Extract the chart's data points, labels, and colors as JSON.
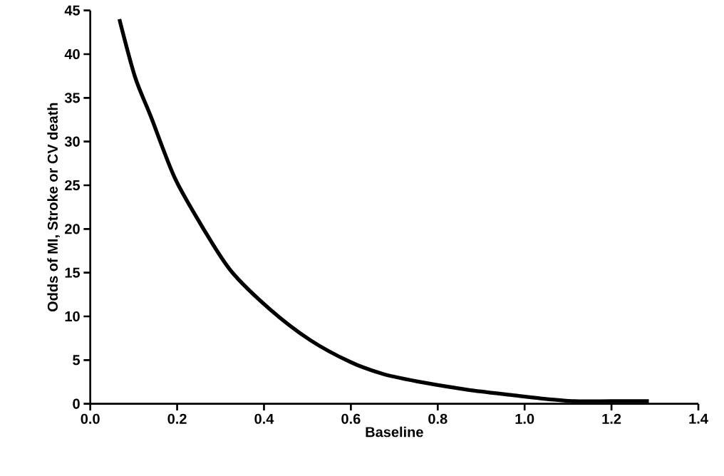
{
  "chart_data": {
    "type": "line",
    "xlabel": "Baseline",
    "ylabel": "Odds of MI, Stroke or CV death",
    "x": [
      0.067,
      0.103,
      0.14,
      0.195,
      0.262,
      0.324,
      0.414,
      0.506,
      0.598,
      0.675,
      0.77,
      0.87,
      0.97,
      1.04,
      1.114,
      1.2,
      1.286
    ],
    "series": [
      {
        "color": "#000000",
        "values": [
          44.0,
          37.4,
          32.8,
          25.8,
          19.9,
          15.2,
          10.8,
          7.3,
          4.8,
          3.4,
          2.4,
          1.6,
          1.0,
          0.6,
          0.3,
          0.3,
          0.3
        ]
      }
    ],
    "xlim": [
      0,
      1.4
    ],
    "ylim": [
      0,
      45
    ],
    "xticks": [
      {
        "value": 0,
        "label": "0.0"
      },
      {
        "value": 0.2,
        "label": "0.2"
      },
      {
        "value": 0.4,
        "label": "0.4"
      },
      {
        "value": 0.6,
        "label": "0.6"
      },
      {
        "value": 0.8,
        "label": "0.8"
      },
      {
        "value": 1.0,
        "label": "1.0"
      },
      {
        "value": 1.2,
        "label": "1.2"
      },
      {
        "value": 1.4,
        "label": "1.4"
      }
    ],
    "yticks": [
      0,
      5,
      10,
      15,
      20,
      25,
      30,
      35,
      40,
      45
    ],
    "grid": false,
    "marker": "none",
    "line_style": "solid"
  }
}
